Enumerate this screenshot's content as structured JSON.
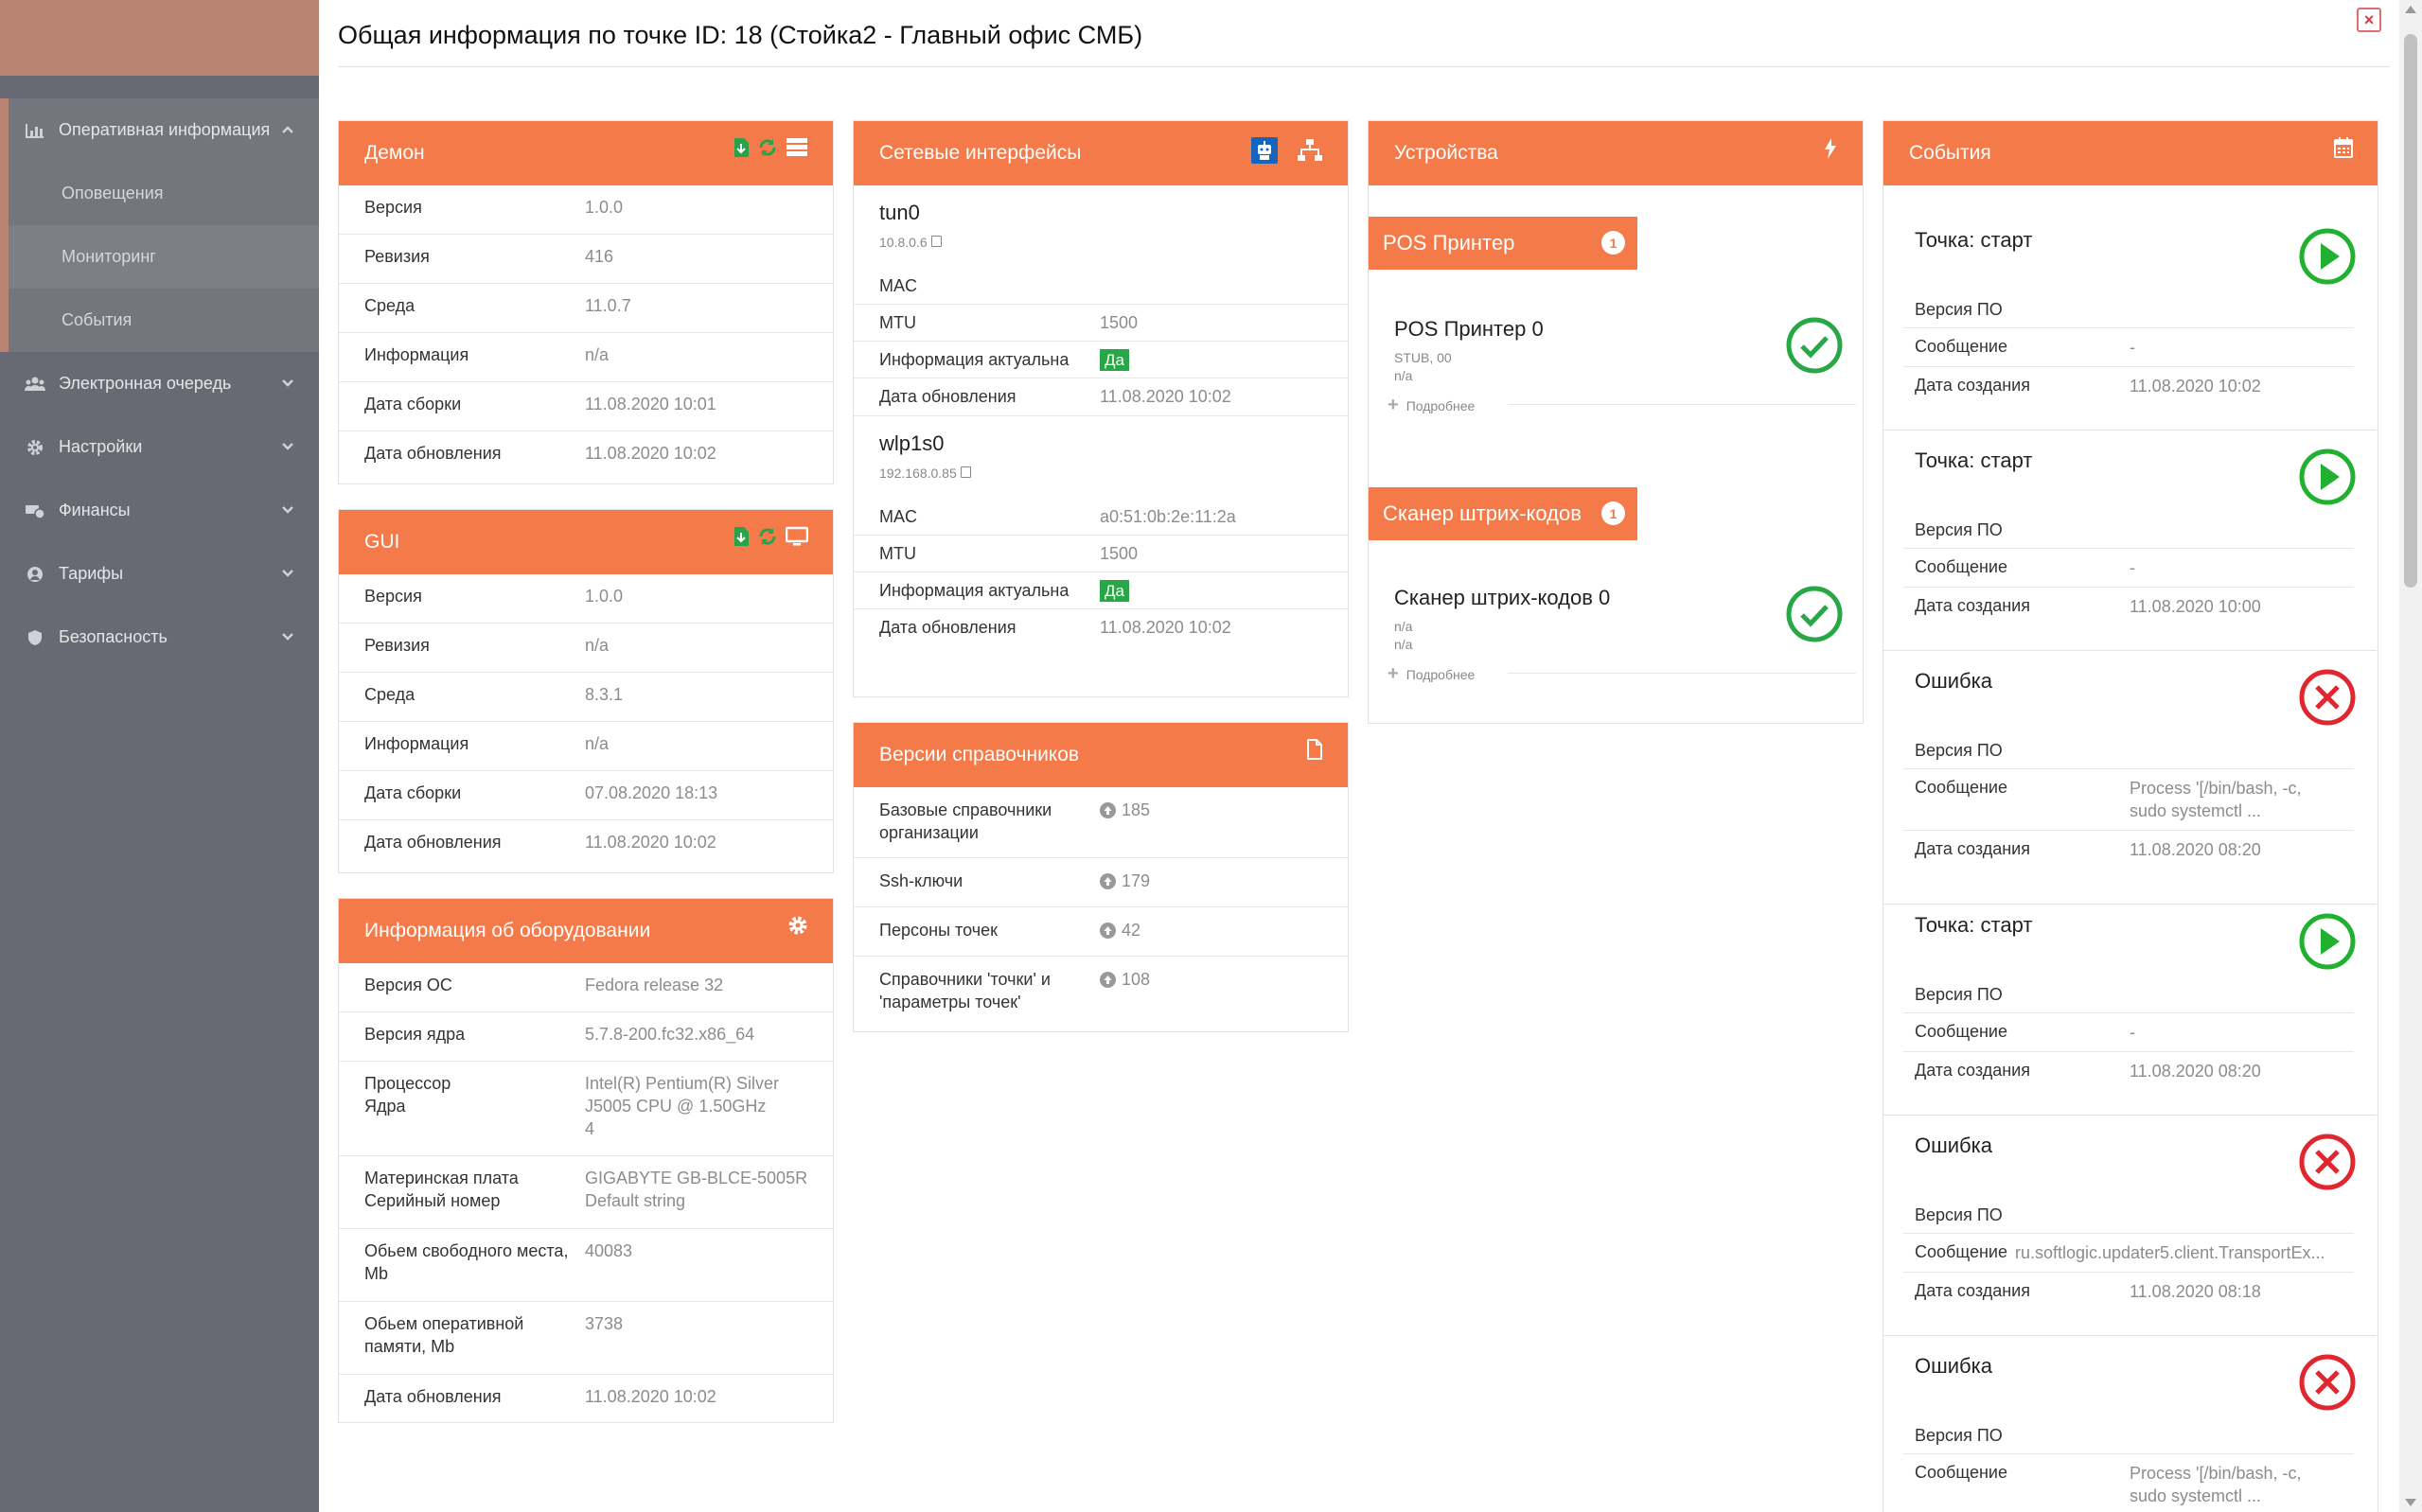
{
  "sidebar": {
    "items": [
      {
        "label": "Оперативная информация",
        "icon": "bar-chart-icon",
        "expanded": true,
        "children": [
          "Оповещения",
          "Мониторинг",
          "События"
        ]
      },
      {
        "label": "Электронная очередь",
        "icon": "users-icon"
      },
      {
        "label": "Настройки",
        "icon": "gear-icon"
      },
      {
        "label": "Финансы",
        "icon": "money-icon"
      },
      {
        "label": "Тарифы",
        "icon": "user-icon"
      },
      {
        "label": "Безопасность",
        "icon": "shield-icon"
      }
    ]
  },
  "modal": {
    "title": "Общая информация по точке ID: 18 (Стойка2 - Главный офис СМБ)",
    "close_label": "×"
  },
  "daemon": {
    "title": "Демон",
    "rows": [
      {
        "k": "Версия",
        "v": "1.0.0"
      },
      {
        "k": "Ревизия",
        "v": "416"
      },
      {
        "k": "Среда",
        "v": "11.0.7"
      },
      {
        "k": "Информация",
        "v": "n/a"
      },
      {
        "k": "Дата сборки",
        "v": "11.08.2020 10:01"
      },
      {
        "k": "Дата обновления",
        "v": "11.08.2020 10:02"
      }
    ]
  },
  "gui": {
    "title": "GUI",
    "rows": [
      {
        "k": "Версия",
        "v": "1.0.0"
      },
      {
        "k": "Ревизия",
        "v": "n/a"
      },
      {
        "k": "Среда",
        "v": "8.3.1"
      },
      {
        "k": "Информация",
        "v": "n/a"
      },
      {
        "k": "Дата сборки",
        "v": "07.08.2020 18:13"
      },
      {
        "k": "Дата обновления",
        "v": "11.08.2020 10:02"
      }
    ]
  },
  "hardware": {
    "title": "Информация об оборудовании",
    "rows": [
      {
        "k": "Версия ОС",
        "v": "Fedora release 32"
      },
      {
        "k": "Версия ядра",
        "v": "5.7.8-200.fc32.x86_64"
      },
      {
        "k": "Процессор\nЯдра",
        "v": "Intel(R) Pentium(R) Silver J5005 CPU @ 1.50GHz\n4"
      },
      {
        "k": "Материнская плата\nСерийный номер",
        "v": "GIGABYTE GB-BLCE-5005R\nDefault string"
      },
      {
        "k": "Обьем свободного места, Mb",
        "v": "40083"
      },
      {
        "k": "Обьем оперативной памяти, Mb",
        "v": "3738"
      },
      {
        "k": "Дата обновления",
        "v": "11.08.2020 10:02"
      }
    ]
  },
  "network": {
    "title": "Сетевые интерфейсы",
    "interfaces": [
      {
        "name": "tun0",
        "ip": "10.8.0.6",
        "rows": [
          {
            "k": "MAC",
            "v": ""
          },
          {
            "k": "MTU",
            "v": "1500"
          },
          {
            "k": "Информация актуальна",
            "v": "Да",
            "badge": true
          },
          {
            "k": "Дата обновления",
            "v": "11.08.2020 10:02"
          }
        ]
      },
      {
        "name": "wlp1s0",
        "ip": "192.168.0.85",
        "rows": [
          {
            "k": "MAC",
            "v": "a0:51:0b:2e:11:2a"
          },
          {
            "k": "MTU",
            "v": "1500"
          },
          {
            "k": "Информация актуальна",
            "v": "Да",
            "badge": true
          },
          {
            "k": "Дата обновления",
            "v": "11.08.2020 10:02"
          }
        ]
      }
    ]
  },
  "dictionaries": {
    "title": "Версии справочников",
    "rows": [
      {
        "k": "Базовые справочники организации",
        "v": "185"
      },
      {
        "k": "Ssh-ключи",
        "v": "179"
      },
      {
        "k": "Персоны точек",
        "v": "42"
      },
      {
        "k": "Справочники 'точки' и 'параметры точек'",
        "v": "108"
      }
    ]
  },
  "devices": {
    "title": "Устройства",
    "groups": [
      {
        "label": "POS Принтер",
        "count": "1",
        "item": {
          "name": "POS Принтер 0",
          "line1": "STUB, 00",
          "line2": "n/a",
          "more": "Подробнее"
        }
      },
      {
        "label": "Сканер штрих-кодов",
        "count": "1",
        "item": {
          "name": "Сканер штрих-кодов 0",
          "line1": "n/a",
          "line2": "n/a",
          "more": "Подробнее"
        }
      }
    ]
  },
  "events": {
    "title": "События",
    "items": [
      {
        "title": "Точка: старт",
        "status": "start",
        "rows": [
          {
            "k": "Версия ПО",
            "v": ""
          },
          {
            "k": "Сообщение",
            "v": "-"
          },
          {
            "k": "Дата создания",
            "v": "11.08.2020 10:02"
          }
        ]
      },
      {
        "title": "Точка: старт",
        "status": "start",
        "rows": [
          {
            "k": "Версия ПО",
            "v": ""
          },
          {
            "k": "Сообщение",
            "v": "-"
          },
          {
            "k": "Дата создания",
            "v": "11.08.2020 10:00"
          }
        ]
      },
      {
        "title": "Ошибка",
        "status": "error",
        "rows": [
          {
            "k": "Версия ПО",
            "v": ""
          },
          {
            "k": "Сообщение",
            "v": "Process '[/bin/bash, -c, sudo systemctl ..."
          },
          {
            "k": "Дата создания",
            "v": "11.08.2020 08:20"
          }
        ]
      },
      {
        "title": "Точка: старт",
        "status": "start",
        "rows": [
          {
            "k": "Версия ПО",
            "v": ""
          },
          {
            "k": "Сообщение",
            "v": "-"
          },
          {
            "k": "Дата создания",
            "v": "11.08.2020 08:20"
          }
        ]
      },
      {
        "title": "Ошибка",
        "status": "error",
        "rows": [
          {
            "k": "Версия ПО",
            "v": ""
          },
          {
            "k": "Сообщение",
            "v": "ru.softlogic.updater5.client.TransportEx...",
            "tight": true
          },
          {
            "k": "Дата создания",
            "v": "11.08.2020 08:18"
          }
        ]
      },
      {
        "title": "Ошибка",
        "status": "error",
        "rows": [
          {
            "k": "Версия ПО",
            "v": ""
          },
          {
            "k": "Сообщение",
            "v": "Process '[/bin/bash, -c, sudo systemctl ..."
          }
        ]
      }
    ]
  },
  "colors": {
    "accent": "#f57a4a",
    "sidebar": "#686a73",
    "brand": "#b98572",
    "ok": "#27a745",
    "error": "#e0262e"
  }
}
